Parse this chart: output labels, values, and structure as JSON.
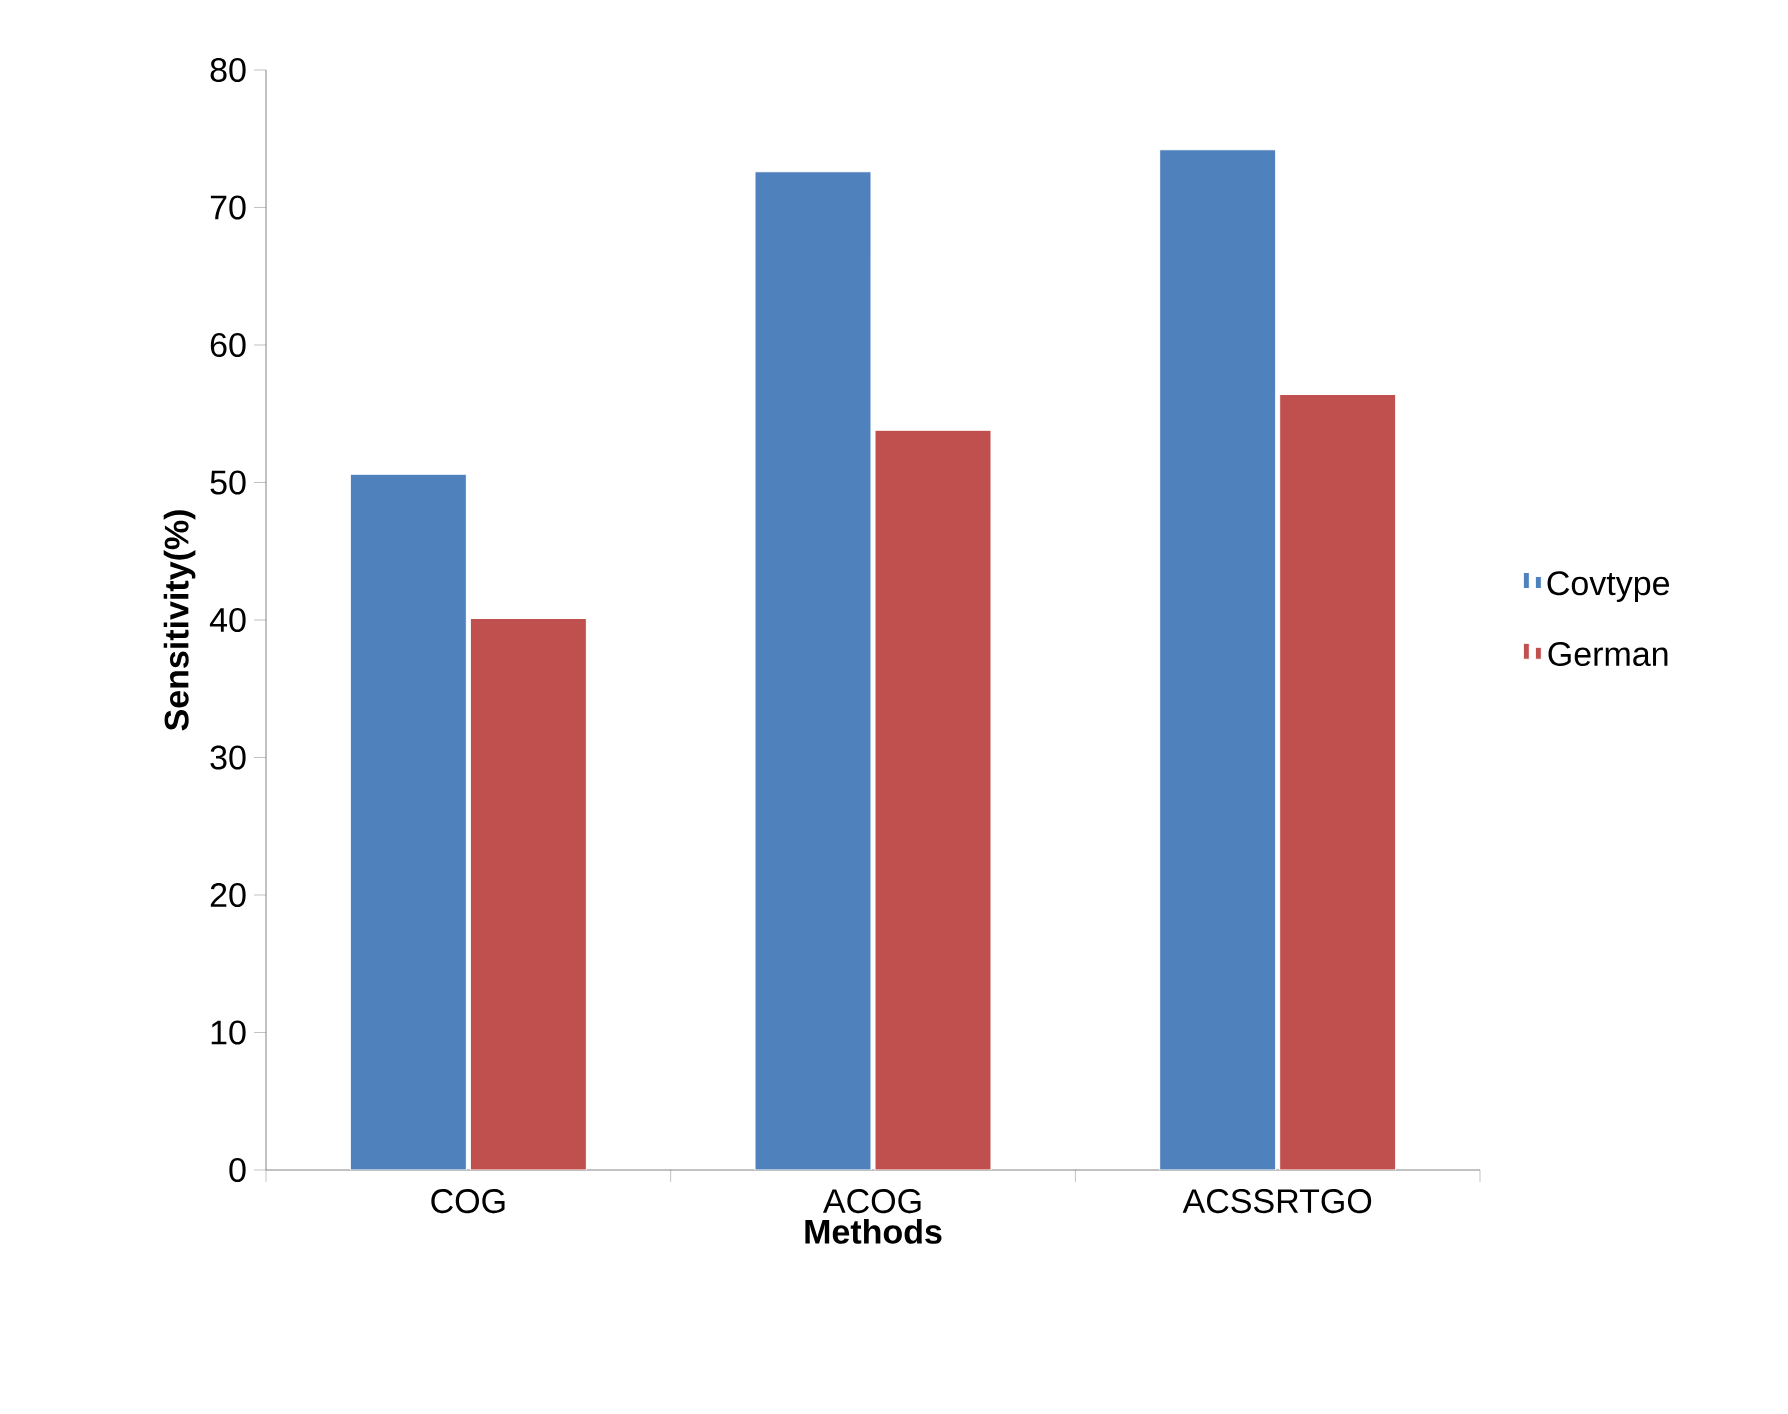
{
  "chart_data": {
    "type": "bar",
    "xlabel": "Methods",
    "ylabel": "Sensitivity(%)",
    "categories": [
      "COG",
      "ACOG",
      "ACSSRTGO"
    ],
    "series": [
      {
        "name": "Covtype",
        "color": "#4f81bd",
        "values": [
          50.6,
          72.6,
          74.2
        ]
      },
      {
        "name": "German",
        "color": "#c0504d",
        "values": [
          40.1,
          53.8,
          56.4
        ]
      }
    ],
    "ylim": [
      0,
      80
    ],
    "yticks": [
      0,
      10,
      20,
      30,
      40,
      50,
      60,
      70,
      80
    ],
    "grid": false,
    "legend": "right"
  }
}
